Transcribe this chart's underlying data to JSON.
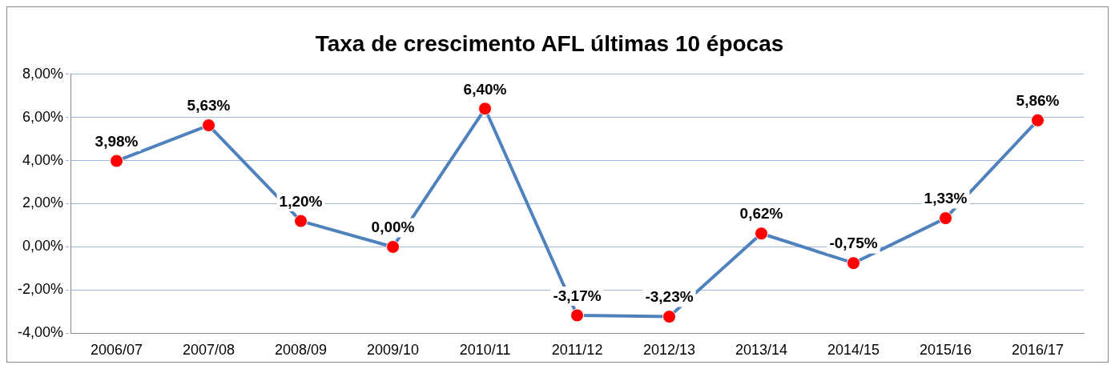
{
  "chart_data": {
    "type": "line",
    "title": "Taxa de crescimento AFL últimas 10 épocas",
    "categories": [
      "2006/07",
      "2007/08",
      "2008/09",
      "2009/10",
      "2010/11",
      "2011/12",
      "2012/13",
      "2013/14",
      "2014/15",
      "2015/16",
      "2016/17"
    ],
    "series": [
      {
        "color": "#4f81bd",
        "colors": [
          "#ff0000",
          "#ff0000",
          "#ff0000",
          "#ff0000",
          "#ff0000",
          "#ff0000",
          "#ff0000",
          "#ff0000",
          "#ff0000",
          "#ff0000",
          "#ff0000"
        ],
        "values": [
          3.98,
          5.63,
          1.2,
          0,
          6.4,
          -3.17,
          -3.23,
          0.62,
          -0.75,
          1.33,
          5.86
        ],
        "value_labels": [
          "3,98%",
          "5,63%",
          "1,20%",
          "0,00%",
          "6,40%",
          "-3,17%",
          "-3,23%",
          "0,62%",
          "-0,75%",
          "1,33%",
          "5,86%"
        ]
      }
    ],
    "ylim": [
      -4,
      8
    ],
    "yticks": [
      {
        "value": -4,
        "label": "-4,00%"
      },
      {
        "value": -2,
        "label": "-2,00%"
      },
      {
        "value": 0,
        "label": "0,00%"
      },
      {
        "value": 2,
        "label": "2,00%"
      },
      {
        "value": 4,
        "label": "4,00%"
      },
      {
        "value": 6,
        "label": "6,00%"
      },
      {
        "value": 8,
        "label": "8,00%"
      }
    ],
    "grid": "y",
    "legend": false,
    "marker": "circle",
    "line_style": "solid"
  }
}
